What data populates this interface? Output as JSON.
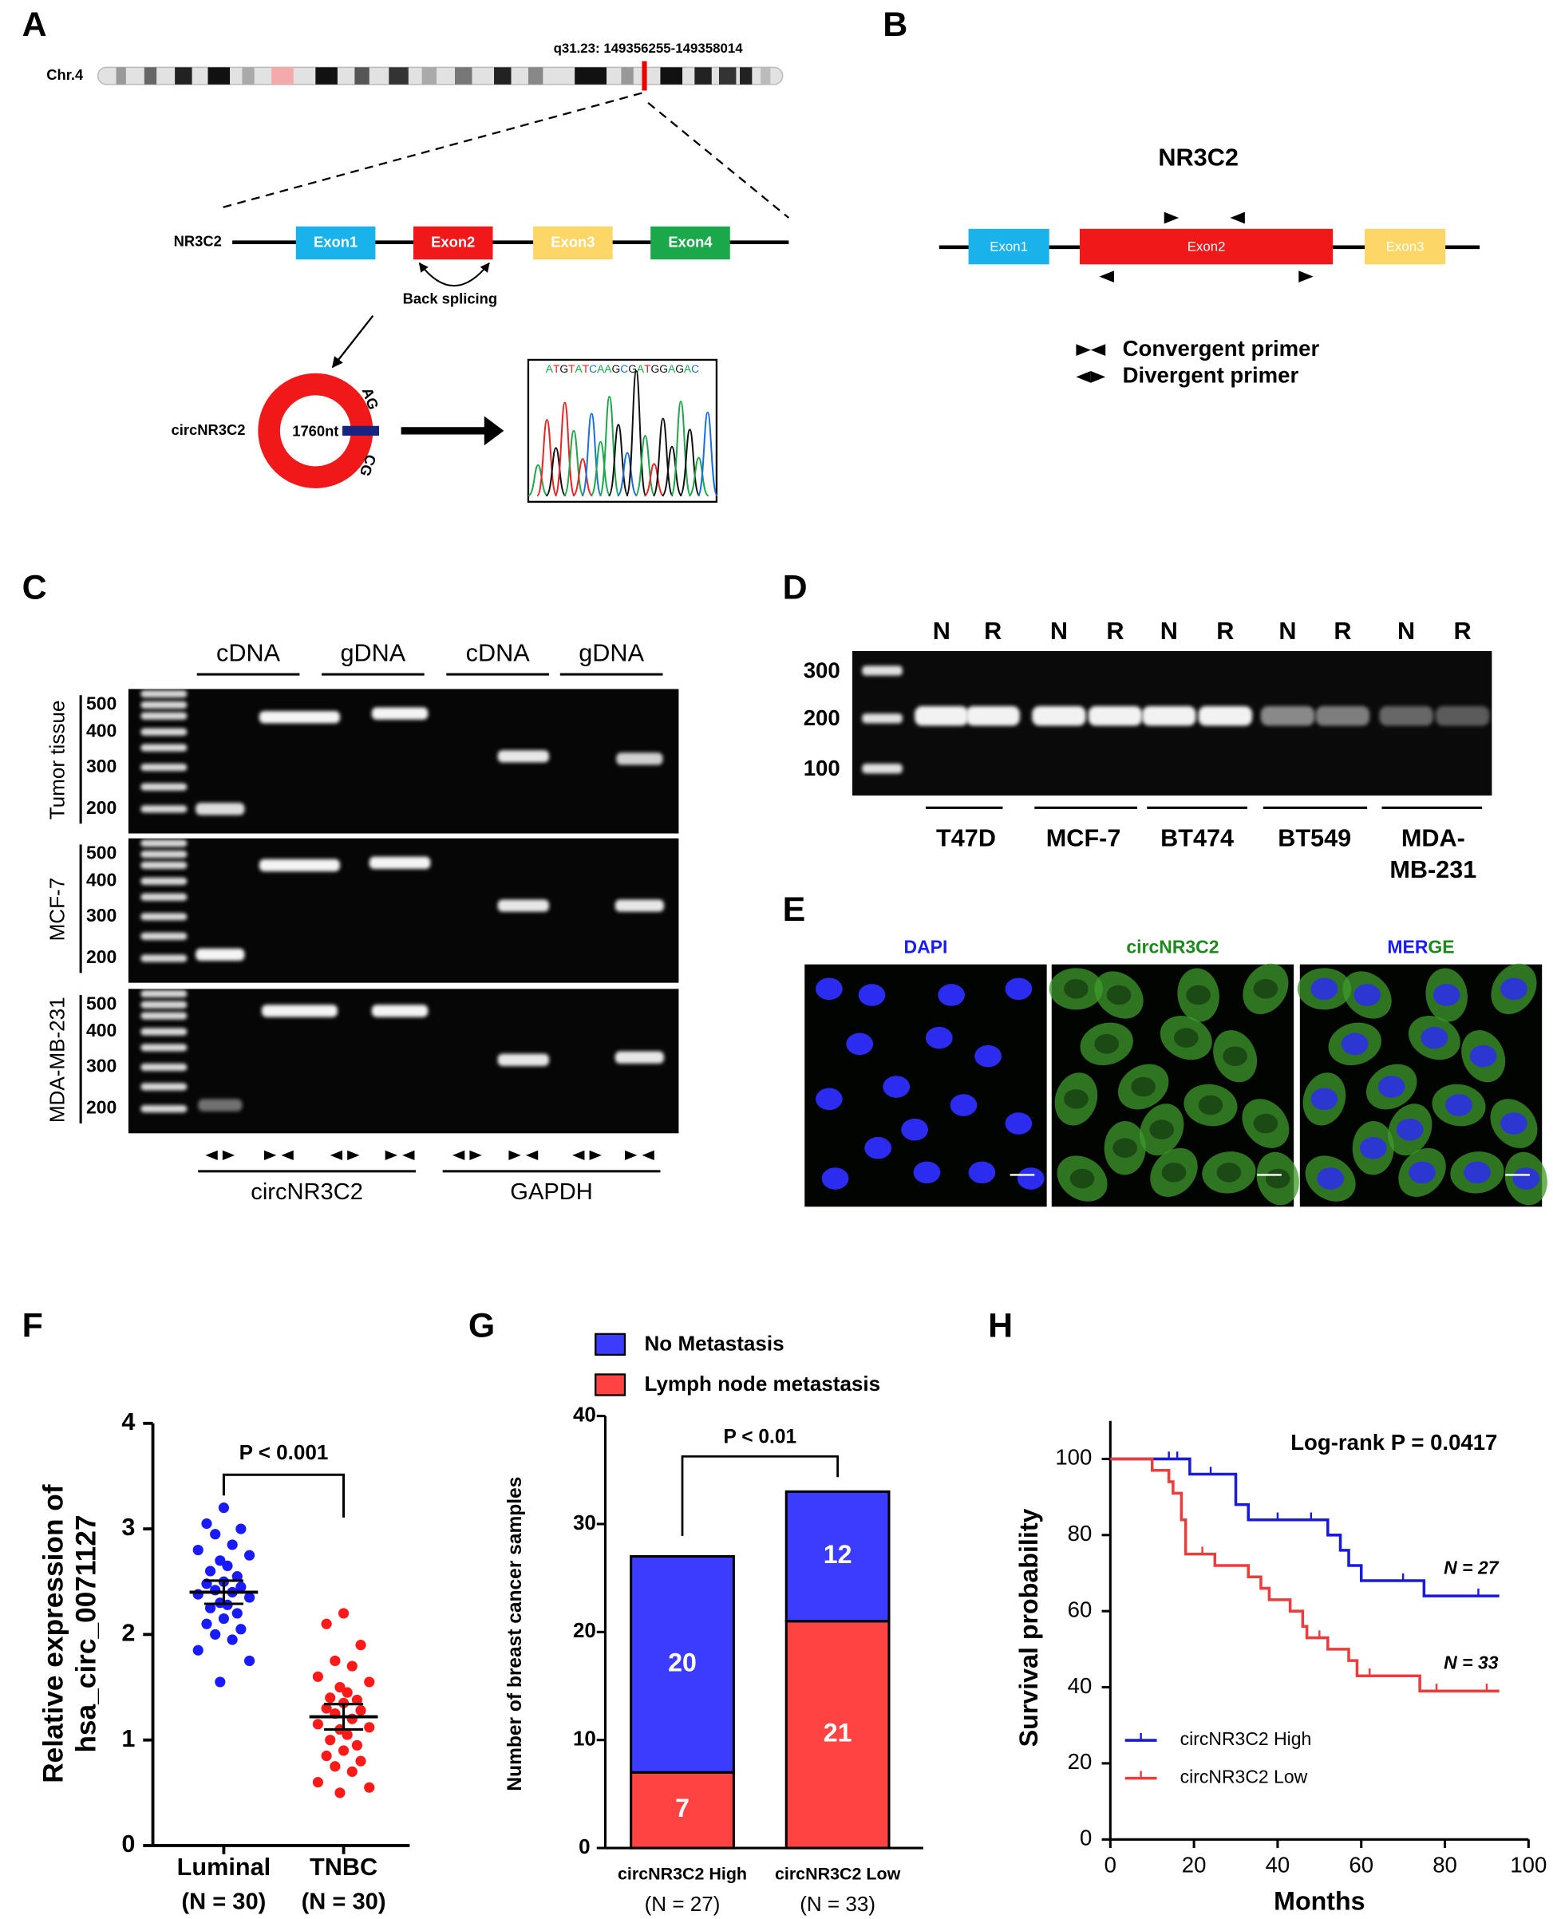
{
  "panels": {
    "A": {
      "letter": "A",
      "chromosome": "Chr.4",
      "locus": "q31.23: 149356255-149358014",
      "gene": "NR3C2",
      "exons": [
        "Exon1",
        "Exon2",
        "Exon3",
        "Exon4"
      ],
      "back_splicing": "Back splicing",
      "circ": "circNR3C2",
      "length": "1760nt",
      "junction": [
        "AG",
        "CG"
      ],
      "sequence": "ATGTATCAAGCGATGGAGAC"
    },
    "B": {
      "letter": "B",
      "gene": "NR3C2",
      "exons": [
        "Exon1",
        "Exon2",
        "Exon3"
      ],
      "legend": [
        "Convergent primer",
        "Divergent primer"
      ]
    },
    "C": {
      "letter": "C",
      "templates": [
        "cDNA",
        "gDNA",
        "cDNA",
        "gDNA"
      ],
      "samples": [
        "Tumor tissue",
        "MCF-7",
        "MDA-MB-231"
      ],
      "ladder": [
        "500",
        "400",
        "300",
        "200"
      ],
      "targets": [
        "circNR3C2",
        "GAPDH"
      ]
    },
    "D": {
      "letter": "D",
      "lanes": [
        "N",
        "R",
        "N",
        "R",
        "N",
        "R",
        "N",
        "R",
        "N",
        "R"
      ],
      "ladder": [
        "300",
        "200",
        "100"
      ],
      "cell_lines": [
        [
          "T47D"
        ],
        [
          "MCF-7"
        ],
        [
          "BT474"
        ],
        [
          "BT549"
        ],
        [
          "MDA-",
          "MB-231"
        ]
      ]
    },
    "E": {
      "letter": "E",
      "channels": [
        [
          "DAPI"
        ],
        [
          "circNR3C2"
        ],
        [
          "MER",
          "GE"
        ]
      ]
    }
  },
  "chart_data": [
    {
      "panel": "F",
      "type": "dot",
      "ylabel": [
        "Relative expression of",
        "hsa_circ_0071127"
      ],
      "categories": [
        "Luminal",
        "TNBC"
      ],
      "category_notes": [
        "(N = 30)",
        "(N = 30)"
      ],
      "colors": [
        "#1a1aff",
        "#ff1a1a"
      ],
      "values": [
        [
          3.2,
          3.05,
          3.0,
          2.95,
          2.85,
          2.8,
          2.75,
          2.7,
          2.65,
          2.6,
          2.55,
          2.5,
          2.48,
          2.45,
          2.42,
          2.4,
          2.38,
          2.35,
          2.3,
          2.28,
          2.25,
          2.2,
          2.15,
          2.1,
          2.05,
          2.0,
          1.95,
          1.85,
          1.75,
          1.55
        ],
        [
          2.2,
          2.1,
          1.9,
          1.75,
          1.7,
          1.6,
          1.55,
          1.5,
          1.45,
          1.4,
          1.38,
          1.35,
          1.3,
          1.28,
          1.25,
          1.2,
          1.15,
          1.12,
          1.1,
          1.05,
          1.0,
          0.95,
          0.9,
          0.85,
          0.8,
          0.75,
          0.7,
          0.6,
          0.55,
          0.5
        ]
      ],
      "means": [
        2.4,
        1.22
      ],
      "errors": [
        0.11,
        0.12
      ],
      "ylim": [
        0,
        4
      ],
      "yticks": [
        0,
        1,
        2,
        3,
        4
      ],
      "annotation": "P < 0.001"
    },
    {
      "panel": "G",
      "type": "stacked_bar",
      "ylabel": "Number of breast cancer samples",
      "categories": [
        "circNR3C2 High",
        "circNR3C2 Low"
      ],
      "category_notes": [
        "(N = 27)",
        "(N = 33)"
      ],
      "series": [
        {
          "name": "No Metastasis",
          "color": "#3c3cff",
          "values": [
            20,
            12
          ]
        },
        {
          "name": "Lymph node metastasis",
          "color": "#ff4242",
          "values": [
            7,
            21
          ]
        }
      ],
      "ylim": [
        0,
        40
      ],
      "yticks": [
        0,
        10,
        20,
        30,
        40
      ],
      "annotation": "P < 0.01",
      "legend": "top"
    },
    {
      "panel": "H",
      "type": "survival",
      "xlabel": "Months",
      "ylabel": "Survival probability",
      "annotation": "Log-rank P = 0.0417",
      "legend": "bottom-left",
      "xlim": [
        0,
        100
      ],
      "xticks": [
        0,
        20,
        40,
        60,
        80,
        100
      ],
      "ylim": [
        0,
        110
      ],
      "yticks": [
        0,
        20,
        40,
        60,
        80,
        100
      ],
      "series": [
        {
          "name": "circNR3C2 High",
          "color": "#1a1adb",
          "label": "N = 27",
          "x": [
            0,
            19,
            30,
            33,
            52,
            55,
            57,
            60,
            75,
            93
          ],
          "values": [
            100,
            96,
            88,
            84,
            80,
            76,
            72,
            68,
            64,
            64
          ],
          "censored_x": [
            14,
            16,
            24,
            40,
            48,
            70,
            88
          ]
        },
        {
          "name": "circNR3C2 Low",
          "color": "#ee3b3b",
          "label": "N = 33",
          "x": [
            0,
            10,
            14,
            15,
            17,
            18,
            25,
            33,
            36,
            38,
            43,
            46,
            47,
            52,
            57,
            59,
            74,
            93
          ],
          "values": [
            100,
            97,
            94,
            91,
            84,
            75,
            72,
            69,
            66,
            63,
            60,
            56,
            53,
            50,
            47,
            43,
            39,
            39
          ],
          "censored_x": [
            22,
            50,
            62,
            78,
            90
          ]
        }
      ]
    }
  ]
}
